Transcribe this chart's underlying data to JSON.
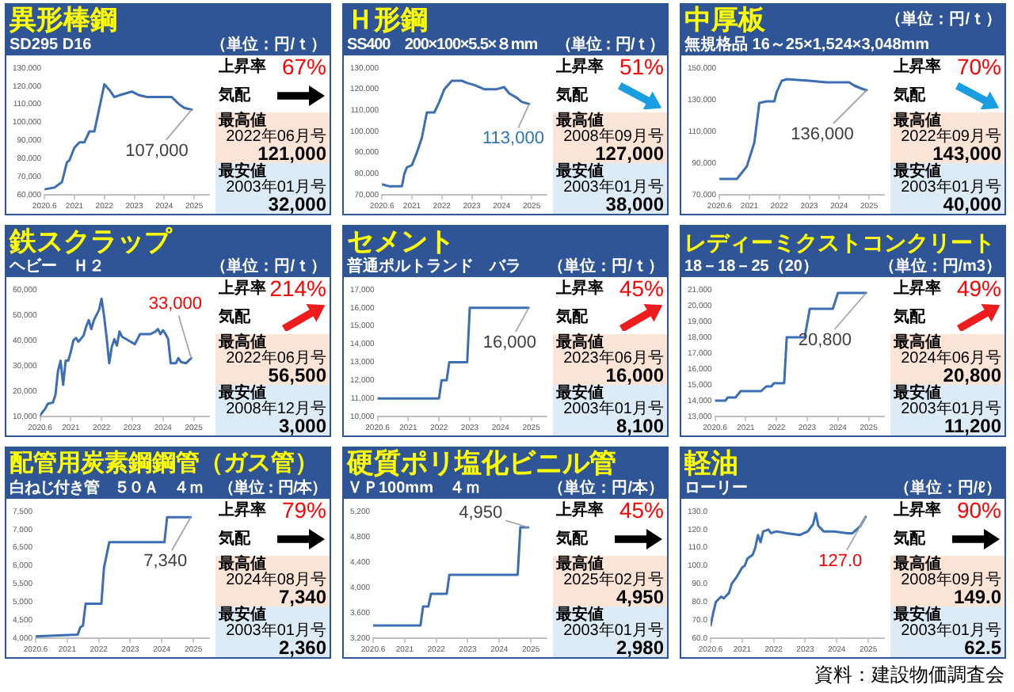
{
  "chart_data": [
    {
      "type": "line",
      "title": "異形棒鋼",
      "subtitle": "SD295 D16",
      "ylabel": "（単位：円/ｔ）",
      "x": [
        "2020-06",
        "2020-10",
        "2021-01",
        "2021-03",
        "2021-04",
        "2021-06",
        "2021-08",
        "2021-10",
        "2021-12",
        "2022-02",
        "2022-06",
        "2022-08",
        "2022-10",
        "2022-12",
        "2023-05",
        "2023-08",
        "2023-11",
        "2024-09",
        "2024-12",
        "2025-02",
        "2025-05"
      ],
      "values": [
        63000,
        64000,
        67000,
        78000,
        79000,
        86000,
        89000,
        89000,
        95000,
        95000,
        121000,
        118000,
        114000,
        115000,
        117000,
        115000,
        114000,
        114000,
        110000,
        108000,
        107000
      ],
      "color": "#3c6eb4",
      "xlim": [
        "2020-06",
        "2025-12"
      ],
      "xticks": [
        {
          "value": "2020-06",
          "label": "2020.6"
        },
        {
          "value": "2021-06",
          "label": "2021"
        },
        {
          "value": "2022-06",
          "label": "2022"
        },
        {
          "value": "2023-06",
          "label": "2023"
        },
        {
          "value": "2024-06",
          "label": "2024"
        },
        {
          "value": "2025-06",
          "label": "2025"
        }
      ],
      "ylim": [
        60000,
        130000
      ],
      "yticks": [
        {
          "value": 60000,
          "label": "60,000"
        },
        {
          "value": 70000,
          "label": "70,000"
        },
        {
          "value": 80000,
          "label": "80,000"
        },
        {
          "value": 90000,
          "label": "90,000"
        },
        {
          "value": 100000,
          "label": "100,000"
        },
        {
          "value": 110000,
          "label": "110,000"
        },
        {
          "value": 120000,
          "label": "120,000"
        },
        {
          "value": 130000,
          "label": "130,000"
        }
      ],
      "grid": false,
      "marker": "none",
      "annotations": [
        "上昇率",
        "67%",
        "気配",
        "最高値",
        "2022年06月号",
        "121,000",
        "最安値",
        "2003年01月号",
        "32,000",
        {
          "text": "107,000",
          "x": "2025-05",
          "y": 107000
        }
      ]
    },
    {
      "type": "line",
      "title": "Ｈ形鋼",
      "subtitle": "SS400　200×100×5.5×８mm",
      "ylabel": "（単位：円/ｔ）",
      "x": [
        "2020-06",
        "2020-09",
        "2021-02",
        "2021-03",
        "2021-04",
        "2021-06",
        "2021-08",
        "2021-10",
        "2021-12",
        "2022-03",
        "2022-05",
        "2022-07",
        "2022-10",
        "2022-11",
        "2023-02",
        "2023-04",
        "2023-07",
        "2023-11",
        "2024-04",
        "2024-07",
        "2024-09",
        "2024-12",
        "2025-02",
        "2025-05"
      ],
      "values": [
        75000,
        74000,
        74000,
        80000,
        83000,
        84000,
        90000,
        97000,
        109000,
        109000,
        114000,
        120000,
        124000,
        124000,
        124000,
        123000,
        122000,
        120000,
        120000,
        121000,
        118000,
        116000,
        114000,
        113000
      ],
      "color": "#3c6eb4",
      "xlim": [
        "2020-06",
        "2025-12"
      ],
      "xticks": [
        {
          "value": "2020-06",
          "label": "2020.6"
        },
        {
          "value": "2021-06",
          "label": "2021"
        },
        {
          "value": "2022-06",
          "label": "2022"
        },
        {
          "value": "2023-06",
          "label": "2023"
        },
        {
          "value": "2024-06",
          "label": "2024"
        },
        {
          "value": "2025-06",
          "label": "2025"
        }
      ],
      "ylim": [
        70000,
        130000
      ],
      "yticks": [
        {
          "value": 70000,
          "label": "70,000"
        },
        {
          "value": 80000,
          "label": "80,000"
        },
        {
          "value": 90000,
          "label": "90,000"
        },
        {
          "value": 100000,
          "label": "100,000"
        },
        {
          "value": 110000,
          "label": "110,000"
        },
        {
          "value": 120000,
          "label": "120,000"
        },
        {
          "value": 130000,
          "label": "130,000"
        }
      ],
      "grid": false,
      "marker": "none",
      "annotations": [
        "上昇率",
        "51%",
        "気配",
        "最高値",
        "2008年09月号",
        "127,000",
        "最安値",
        "2003年01月号",
        "38,000",
        {
          "text": "113,000",
          "x": "2025-05",
          "y": 113000
        }
      ]
    },
    {
      "type": "line",
      "title": "中厚板",
      "subtitle": "無規格品 16～25×1,524×3,048mm",
      "ylabel": "（単位：円/ｔ）",
      "x": [
        "2020-06",
        "2021-01",
        "2021-03",
        "2021-05",
        "2021-08",
        "2021-10",
        "2022-01",
        "2022-04",
        "2022-05",
        "2022-07",
        "2022-09",
        "2023-06",
        "2024-01",
        "2024-10",
        "2024-12",
        "2025-03",
        "2025-05"
      ],
      "values": [
        80000,
        80000,
        84000,
        88000,
        103000,
        128000,
        129000,
        129000,
        135000,
        142000,
        143000,
        142000,
        141000,
        141000,
        139000,
        137000,
        136000
      ],
      "color": "#3c6eb4",
      "xlim": [
        "2020-06",
        "2025-12"
      ],
      "xticks": [
        {
          "value": "2020-06",
          "label": "2020.6"
        },
        {
          "value": "2021-06",
          "label": "2021"
        },
        {
          "value": "2022-06",
          "label": "2022"
        },
        {
          "value": "2023-06",
          "label": "2023"
        },
        {
          "value": "2024-06",
          "label": "2024"
        },
        {
          "value": "2025-06",
          "label": "2025"
        }
      ],
      "ylim": [
        70000,
        150000
      ],
      "yticks": [
        {
          "value": 70000,
          "label": "70,000"
        },
        {
          "value": 90000,
          "label": "90,000"
        },
        {
          "value": 110000,
          "label": "110,000"
        },
        {
          "value": 130000,
          "label": "130,000"
        },
        {
          "value": 150000,
          "label": "150,000"
        }
      ],
      "grid": false,
      "marker": "none",
      "annotations": [
        "上昇率",
        "70%",
        "気配",
        "最高値",
        "2022年09月号",
        "143,000",
        "最安値",
        "2003年01月号",
        "40,000",
        {
          "text": "136,000",
          "x": "2025-05",
          "y": 136000
        }
      ]
    },
    {
      "type": "line",
      "title": "鉄スクラップ",
      "subtitle": "ヘビー　Ｈ２",
      "ylabel": "（単位：円/ｔ）",
      "x": [
        "2020-06",
        "2020-08",
        "2020-09",
        "2020-11",
        "2020-12",
        "2021-01",
        "2021-02",
        "2021-03",
        "2021-04",
        "2021-05",
        "2021-06",
        "2021-07",
        "2021-08",
        "2021-09",
        "2021-11",
        "2021-12",
        "2022-01",
        "2022-02",
        "2022-03",
        "2022-05",
        "2022-06",
        "2022-07",
        "2022-08",
        "2022-09",
        "2022-10",
        "2022-11",
        "2022-12",
        "2023-01",
        "2023-02",
        "2023-07",
        "2023-08",
        "2023-09",
        "2023-11",
        "2024-01",
        "2024-03",
        "2024-04",
        "2024-05",
        "2024-06",
        "2024-07",
        "2024-08",
        "2024-09",
        "2024-11",
        "2024-12",
        "2025-01",
        "2025-03",
        "2025-05"
      ],
      "values": [
        10500,
        13000,
        15000,
        15500,
        18500,
        28000,
        32000,
        22500,
        32000,
        32000,
        35500,
        40000,
        41000,
        39500,
        42000,
        45500,
        48000,
        44500,
        48000,
        52000,
        56500,
        49500,
        41000,
        31000,
        37500,
        40500,
        38000,
        43500,
        41500,
        38500,
        40500,
        42500,
        42500,
        42500,
        43500,
        44500,
        42500,
        44000,
        42500,
        40500,
        31000,
        31000,
        33000,
        31500,
        31000,
        33000
      ],
      "color": "#3c6eb4",
      "xlim": [
        "2020-06",
        "2025-12"
      ],
      "xticks": [
        {
          "value": "2020-06",
          "label": "2020.6"
        },
        {
          "value": "2021-06",
          "label": "2021"
        },
        {
          "value": "2022-06",
          "label": "2022"
        },
        {
          "value": "2023-06",
          "label": "2023"
        },
        {
          "value": "2024-06",
          "label": "2024"
        },
        {
          "value": "2025-06",
          "label": "2025"
        }
      ],
      "ylim": [
        10000,
        60000
      ],
      "yticks": [
        {
          "value": 10000,
          "label": "10,000"
        },
        {
          "value": 20000,
          "label": "20,000"
        },
        {
          "value": 30000,
          "label": "30,000"
        },
        {
          "value": 40000,
          "label": "40,000"
        },
        {
          "value": 50000,
          "label": "50,000"
        },
        {
          "value": 60000,
          "label": "60,000"
        }
      ],
      "grid": false,
      "marker": "none",
      "annotations": [
        "上昇率",
        "214%",
        "気配",
        "最高値",
        "2022年06月号",
        "56,500",
        "最安値",
        "2008年12月号",
        "3,000",
        {
          "text": "33,000",
          "x": "2025-05",
          "y": 33000
        }
      ]
    },
    {
      "type": "line",
      "title": "セメント",
      "subtitle": "普通ポルトランド　バラ",
      "ylabel": "（単位：円/ｔ）",
      "x": [
        "2020-06",
        "2022-06",
        "2022-07",
        "2022-09",
        "2022-10",
        "2023-05",
        "2023-06",
        "2025-05"
      ],
      "values": [
        11000,
        11000,
        12000,
        12000,
        13000,
        13000,
        16000,
        16000
      ],
      "color": "#3c6eb4",
      "xlim": [
        "2020-06",
        "2025-12"
      ],
      "xticks": [
        {
          "value": "2020-06",
          "label": "2020.6"
        },
        {
          "value": "2021-06",
          "label": "2021"
        },
        {
          "value": "2022-06",
          "label": "2022"
        },
        {
          "value": "2023-06",
          "label": "2023"
        },
        {
          "value": "2024-06",
          "label": "2024"
        },
        {
          "value": "2025-06",
          "label": "2025"
        }
      ],
      "ylim": [
        10000,
        17000
      ],
      "yticks": [
        {
          "value": 10000,
          "label": "10,000"
        },
        {
          "value": 11000,
          "label": "11,000"
        },
        {
          "value": 12000,
          "label": "12,000"
        },
        {
          "value": 13000,
          "label": "13,000"
        },
        {
          "value": 14000,
          "label": "14,000"
        },
        {
          "value": 15000,
          "label": "15,000"
        },
        {
          "value": 16000,
          "label": "16,000"
        },
        {
          "value": 17000,
          "label": "17,000"
        }
      ],
      "grid": false,
      "marker": "none",
      "annotations": [
        "上昇率",
        "45%",
        "気配",
        "最高値",
        "2023年06月号",
        "16,000",
        "最安値",
        "2003年01月号",
        "8,100",
        {
          "text": "16,000",
          "x": "2025-05",
          "y": 16000
        }
      ]
    },
    {
      "type": "line",
      "title": "レディーミクストコンクリート",
      "subtitle": "18－18－25（20）",
      "ylabel": "（単位：円/m3）",
      "x": [
        "2020-06",
        "2020-10",
        "2020-11",
        "2021-02",
        "2021-04",
        "2021-12",
        "2022-02",
        "2022-04",
        "2022-05",
        "2022-09",
        "2022-10",
        "2023-05",
        "2023-07",
        "2024-04",
        "2024-06",
        "2025-05"
      ],
      "values": [
        14000,
        14000,
        14200,
        14200,
        14600,
        14600,
        14900,
        14900,
        15100,
        15100,
        18000,
        18000,
        19800,
        19800,
        20800,
        20800
      ],
      "color": "#3c6eb4",
      "xlim": [
        "2020-06",
        "2025-12"
      ],
      "xticks": [
        {
          "value": "2020-06",
          "label": "2020.6"
        },
        {
          "value": "2021-06",
          "label": "2021"
        },
        {
          "value": "2022-06",
          "label": "2022"
        },
        {
          "value": "2023-06",
          "label": "2023"
        },
        {
          "value": "2024-06",
          "label": "2024"
        },
        {
          "value": "2025-06",
          "label": "2025"
        }
      ],
      "ylim": [
        13000,
        21000
      ],
      "yticks": [
        {
          "value": 13000,
          "label": "13,000"
        },
        {
          "value": 14000,
          "label": "14,000"
        },
        {
          "value": 15000,
          "label": "15,000"
        },
        {
          "value": 16000,
          "label": "16,000"
        },
        {
          "value": 17000,
          "label": "17,000"
        },
        {
          "value": 18000,
          "label": "18,000"
        },
        {
          "value": 19000,
          "label": "19,000"
        },
        {
          "value": 20000,
          "label": "20,000"
        },
        {
          "value": 21000,
          "label": "21,000"
        }
      ],
      "grid": false,
      "marker": "none",
      "annotations": [
        "上昇率",
        "49%",
        "気配",
        "最高値",
        "2024年06月号",
        "20,800",
        "最安値",
        "2003年01月号",
        "11,200",
        {
          "text": "20,800",
          "x": "2025-05",
          "y": 20800
        }
      ]
    },
    {
      "type": "line",
      "title": "配管用炭素鋼鋼管（ガス管）",
      "subtitle": "白ねじ付き管　５０Ａ　４ｍ",
      "ylabel": "（単位：円/本）",
      "x": [
        "2020-06",
        "2021-10",
        "2021-11",
        "2021-12",
        "2022-01",
        "2022-07",
        "2022-08",
        "2022-10",
        "2024-07",
        "2024-08",
        "2025-05"
      ],
      "values": [
        4050,
        4100,
        4300,
        4350,
        4950,
        4950,
        5950,
        6650,
        6650,
        7340,
        7340
      ],
      "color": "#3c6eb4",
      "xlim": [
        "2020-06",
        "2025-12"
      ],
      "xticks": [
        {
          "value": "2020-06",
          "label": "2020.6"
        },
        {
          "value": "2021-06",
          "label": "2021"
        },
        {
          "value": "2022-06",
          "label": "2022"
        },
        {
          "value": "2023-06",
          "label": "2023"
        },
        {
          "value": "2024-06",
          "label": "2024"
        },
        {
          "value": "2025-06",
          "label": "2025"
        }
      ],
      "ylim": [
        4000,
        7500
      ],
      "yticks": [
        {
          "value": 4000,
          "label": "4,000"
        },
        {
          "value": 4500,
          "label": "4,500"
        },
        {
          "value": 5000,
          "label": "5,000"
        },
        {
          "value": 5500,
          "label": "5,500"
        },
        {
          "value": 6000,
          "label": "6,000"
        },
        {
          "value": 6500,
          "label": "6,500"
        },
        {
          "value": 7000,
          "label": "7,000"
        },
        {
          "value": 7500,
          "label": "7,500"
        }
      ],
      "grid": false,
      "marker": "none",
      "annotations": [
        "上昇率",
        "79%",
        "気配",
        "最高値",
        "2024年08月号",
        "7,340",
        "最安値",
        "2003年01月号",
        "2,360",
        {
          "text": "7,340",
          "x": "2025-05",
          "y": 7340
        }
      ]
    },
    {
      "type": "line",
      "title": "硬質ポリ塩化ビニル管",
      "subtitle": "ＶＰ100mm　４ｍ",
      "ylabel": "（単位：円/本）",
      "x": [
        "2020-06",
        "2021-12",
        "2022-01",
        "2022-03",
        "2022-04",
        "2022-10",
        "2022-11",
        "2025-01",
        "2025-02",
        "2025-05"
      ],
      "values": [
        3400,
        3400,
        3700,
        3700,
        3900,
        3900,
        4200,
        4200,
        4950,
        4950
      ],
      "color": "#3c6eb4",
      "xlim": [
        "2020-06",
        "2025-12"
      ],
      "xticks": [
        {
          "value": "2020-06",
          "label": "2020.6"
        },
        {
          "value": "2021-06",
          "label": "2021"
        },
        {
          "value": "2022-06",
          "label": "2022"
        },
        {
          "value": "2023-06",
          "label": "2023"
        },
        {
          "value": "2024-06",
          "label": "2024"
        },
        {
          "value": "2025-06",
          "label": "2025"
        }
      ],
      "ylim": [
        3200,
        5200
      ],
      "yticks": [
        {
          "value": 3200,
          "label": "3,200"
        },
        {
          "value": 3600,
          "label": "3,600"
        },
        {
          "value": 4000,
          "label": "4,000"
        },
        {
          "value": 4400,
          "label": "4,400"
        },
        {
          "value": 4800,
          "label": "4,800"
        },
        {
          "value": 5200,
          "label": "5,200"
        }
      ],
      "grid": false,
      "marker": "none",
      "annotations": [
        "上昇率",
        "45%",
        "気配",
        "最高値",
        "2025年02月号",
        "4,950",
        "最安値",
        "2003年01月号",
        "2,980",
        {
          "text": "4,950",
          "x": "2025-05",
          "y": 4950
        }
      ]
    },
    {
      "type": "line",
      "title": "軽油",
      "subtitle": "ローリー",
      "ylabel": "（単位：円/ℓ）",
      "x": [
        "2020-06",
        "2020-07",
        "2020-08",
        "2020-10",
        "2020-11",
        "2021-01",
        "2021-02",
        "2021-04",
        "2021-06",
        "2021-07",
        "2021-08",
        "2021-10",
        "2021-11",
        "2021-12",
        "2022-01",
        "2022-02",
        "2022-04",
        "2022-05",
        "2022-07",
        "2022-11",
        "2023-04",
        "2023-07",
        "2023-09",
        "2023-10",
        "2023-11",
        "2024-01",
        "2024-05",
        "2024-10",
        "2024-12",
        "2025-03",
        "2025-05"
      ],
      "values": [
        67,
        74,
        80,
        83,
        82,
        85,
        90,
        94,
        99,
        100,
        104,
        106,
        110,
        117,
        113,
        119,
        120,
        118,
        119,
        118,
        117,
        119,
        123,
        129,
        122,
        119,
        119,
        118,
        118,
        122,
        127
      ],
      "color": "#3c6eb4",
      "xlim": [
        "2020-06",
        "2025-12"
      ],
      "xticks": [
        {
          "value": "2020-06",
          "label": "2020.6"
        },
        {
          "value": "2021-06",
          "label": "2021"
        },
        {
          "value": "2022-06",
          "label": "2022"
        },
        {
          "value": "2023-06",
          "label": "2023"
        },
        {
          "value": "2024-06",
          "label": "2024"
        },
        {
          "value": "2025-06",
          "label": "2025"
        }
      ],
      "ylim": [
        60,
        130
      ],
      "yticks": [
        {
          "value": 60,
          "label": "60.0"
        },
        {
          "value": 70,
          "label": "70.0"
        },
        {
          "value": 80,
          "label": "80.0"
        },
        {
          "value": 90,
          "label": "90.0"
        },
        {
          "value": 100,
          "label": "100.0"
        },
        {
          "value": 110,
          "label": "110.0"
        },
        {
          "value": 120,
          "label": "120.0"
        },
        {
          "value": 130,
          "label": "130.0"
        }
      ],
      "grid": false,
      "marker": "none",
      "annotations": [
        "上昇率",
        "90%",
        "気配",
        "最高値",
        "2008年09月号",
        "149.0",
        "最安値",
        "2003年01月号",
        "62.5",
        {
          "text": "127.0",
          "x": "2025-05",
          "y": 127
        },
        "資料：建設物価調査会"
      ]
    }
  ]
}
